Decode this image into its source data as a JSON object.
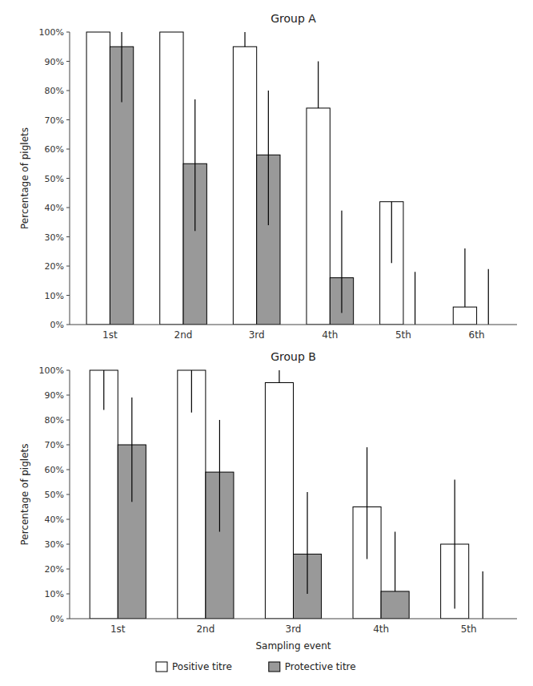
{
  "chart_data": [
    {
      "type": "bar",
      "title": "Group A",
      "ylabel": "Percentage of piglets",
      "categories": [
        "1st",
        "2nd",
        "3rd",
        "4th",
        "5th",
        "6th"
      ],
      "series": [
        {
          "name": "Positive titre",
          "color": "#ffffff",
          "values": [
            1.0,
            1.0,
            0.95,
            0.74,
            0.42,
            0.06
          ],
          "err_low": [
            0.0,
            0.0,
            0.0,
            0.0,
            0.21,
            0.0
          ],
          "err_high": [
            0.0,
            0.0,
            0.05,
            0.16,
            0.0,
            0.2
          ]
        },
        {
          "name": "Protective titre",
          "color": "#999999",
          "values": [
            0.95,
            0.55,
            0.58,
            0.16,
            0.0,
            0.0
          ],
          "err_low": [
            0.19,
            0.23,
            0.24,
            0.12,
            0.0,
            0.0
          ],
          "err_high": [
            0.05,
            0.22,
            0.22,
            0.23,
            0.18,
            0.19
          ]
        }
      ],
      "ylim": [
        0.0,
        1.0
      ],
      "yticks": [
        {
          "value": 0.0,
          "label": "0%"
        },
        {
          "value": 0.1,
          "label": "10%"
        },
        {
          "value": 0.2,
          "label": "20%"
        },
        {
          "value": 0.3,
          "label": "30%"
        },
        {
          "value": 0.4,
          "label": "40%"
        },
        {
          "value": 0.5,
          "label": "50%"
        },
        {
          "value": 0.6,
          "label": "60%"
        },
        {
          "value": 0.7,
          "label": "70%"
        },
        {
          "value": 0.8,
          "label": "80%"
        },
        {
          "value": 0.9,
          "label": "90%"
        },
        {
          "value": 1.0,
          "label": "100%"
        }
      ],
      "grid": false,
      "legend": "bottom"
    },
    {
      "type": "bar",
      "title": "Group B",
      "xlabel": "Sampling event",
      "ylabel": "Percentage of piglets",
      "categories": [
        "1st",
        "2nd",
        "3rd",
        "4th",
        "5th"
      ],
      "series": [
        {
          "name": "Positive titre",
          "color": "#ffffff",
          "values": [
            1.0,
            1.0,
            0.95,
            0.45,
            0.3
          ],
          "err_low": [
            0.16,
            0.17,
            0.0,
            0.21,
            0.26
          ],
          "err_high": [
            0.0,
            0.0,
            0.05,
            0.24,
            0.26
          ]
        },
        {
          "name": "Protective titre",
          "color": "#999999",
          "values": [
            0.7,
            0.59,
            0.26,
            0.11,
            0.0
          ],
          "err_low": [
            0.23,
            0.24,
            0.16,
            0.0,
            0.0
          ],
          "err_high": [
            0.19,
            0.21,
            0.25,
            0.24,
            0.19
          ]
        }
      ],
      "ylim": [
        0.0,
        1.0
      ],
      "yticks": [
        {
          "value": 0.0,
          "label": "0%"
        },
        {
          "value": 0.1,
          "label": "10%"
        },
        {
          "value": 0.2,
          "label": "20%"
        },
        {
          "value": 0.3,
          "label": "30%"
        },
        {
          "value": 0.4,
          "label": "40%"
        },
        {
          "value": 0.5,
          "label": "50%"
        },
        {
          "value": 0.6,
          "label": "60%"
        },
        {
          "value": 0.7,
          "label": "70%"
        },
        {
          "value": 0.8,
          "label": "80%"
        },
        {
          "value": 0.9,
          "label": "90%"
        },
        {
          "value": 1.0,
          "label": "100%"
        }
      ],
      "grid": false,
      "legend": "bottom"
    }
  ]
}
